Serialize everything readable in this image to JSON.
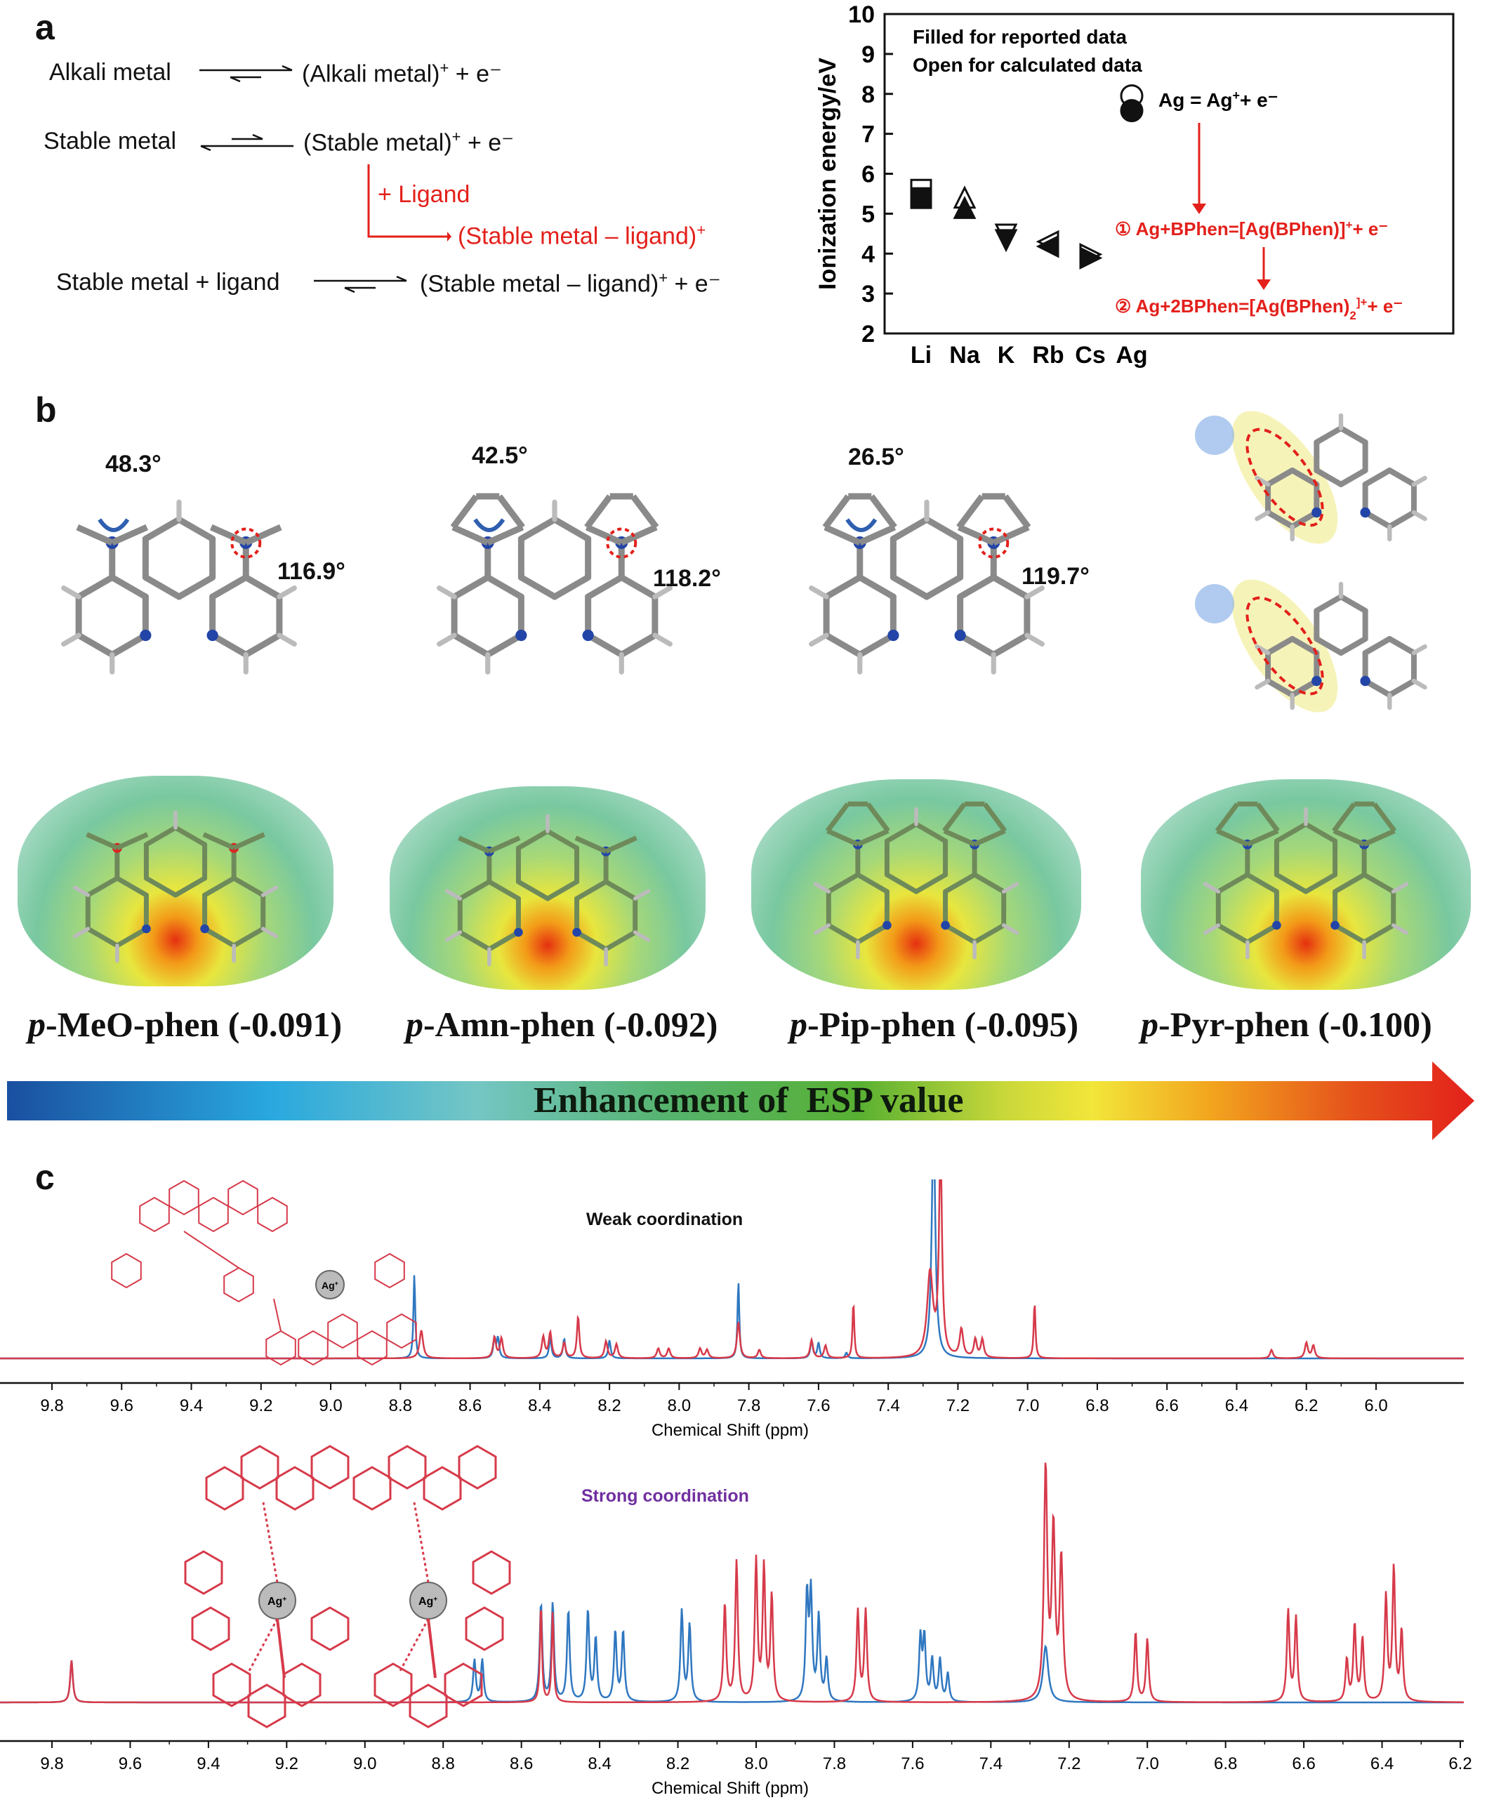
{
  "panels": {
    "a": "a",
    "b": "b",
    "c": "c"
  },
  "panel_a": {
    "reactions": [
      {
        "left": "Alkali metal",
        "right": "(Alkali metal)",
        "sup": "+",
        "tail": " + e⁻"
      },
      {
        "left": "Stable metal",
        "right": "(Stable metal)",
        "sup": "+",
        "tail": " + e⁻"
      },
      {
        "left": "Stable metal + ligand",
        "right": "(Stable metal – ligand)",
        "sup": "+",
        "tail": " + e⁻"
      }
    ],
    "ligand_label": "+ Ligand",
    "ligand_product": "(Stable metal – ligand)",
    "ligand_product_sup": "+"
  },
  "chart_data": {
    "type": "scatter",
    "ylabel": "Ionization energy/eV",
    "ylim": [
      2,
      10
    ],
    "yticks": [
      2,
      3,
      4,
      5,
      6,
      7,
      8,
      9,
      10
    ],
    "categories": [
      "Li",
      "Na",
      "K",
      "Rb",
      "Cs",
      "Ag"
    ],
    "legend": [
      "Filled for reported data",
      "Open for calculated data"
    ],
    "series": [
      {
        "name": "Filled for reported data",
        "values": [
          5.39,
          5.14,
          4.34,
          4.18,
          3.89,
          7.58
        ]
      },
      {
        "name": "Open for calculated data",
        "values": [
          5.6,
          5.4,
          4.48,
          4.3,
          3.98,
          7.95
        ]
      }
    ],
    "markers": [
      "square",
      "triangle-up",
      "triangle-down",
      "triangle-left",
      "triangle-right",
      "circle"
    ],
    "annotations": {
      "ag_eq": "Ag = Ag",
      "ag_eq_sup": "+",
      "ag_eq_tail": "+ e⁻",
      "step1": "① Ag+BPhen=[Ag(BPhen)]",
      "step1_tail": "+ e⁻",
      "step2": "② Ag+2BPhen=[Ag(BPhen)",
      "step2_sub": "2",
      "step2_tail": "+ e⁻",
      "sup_plus": "+"
    }
  },
  "panel_b": {
    "angles_top": [
      "48.3°",
      "42.5°",
      "26.5°"
    ],
    "angles_bottom": [
      "116.9°",
      "118.2°",
      "119.7°"
    ],
    "esp": [
      {
        "prefix": "p",
        "name": "-MeO-phen (-0.091)"
      },
      {
        "prefix": "p",
        "name": "-Amn-phen (-0.092)"
      },
      {
        "prefix": "p",
        "name": "-Pip-phen (-0.095)"
      },
      {
        "prefix": "p",
        "name": "-Pyr-phen (-0.100)"
      }
    ],
    "gradient_label": "Enhancement of  ESP value"
  },
  "panel_c": {
    "spectra": [
      {
        "title": "Weak coordination",
        "title_color": "#111111",
        "xlabel": "Chemical Shift (ppm)",
        "ticks": [
          "9.8",
          "9.6",
          "9.4",
          "9.2",
          "9.0",
          "8.8",
          "8.6",
          "8.4",
          "8.2",
          "8.0",
          "7.8",
          "7.6",
          "7.4",
          "7.2",
          "7.0",
          "6.8",
          "6.6",
          "6.4",
          "6.2",
          "6.0"
        ]
      },
      {
        "title": "Strong coordination",
        "title_color": "#7030a0",
        "xlabel": "Chemical Shift (ppm)",
        "ticks": [
          "9.8",
          "9.6",
          "9.4",
          "9.2",
          "9.0",
          "8.8",
          "8.6",
          "8.4",
          "8.2",
          "8.0",
          "7.8",
          "7.6",
          "7.4",
          "7.2",
          "7.0",
          "6.8",
          "6.6",
          "6.4",
          "6.2"
        ]
      }
    ],
    "ag_label": "Ag",
    "ag_sup": "+",
    "n_label": "N",
    "colors": {
      "red": "#d63a4a",
      "blue": "#2f77c0"
    }
  }
}
